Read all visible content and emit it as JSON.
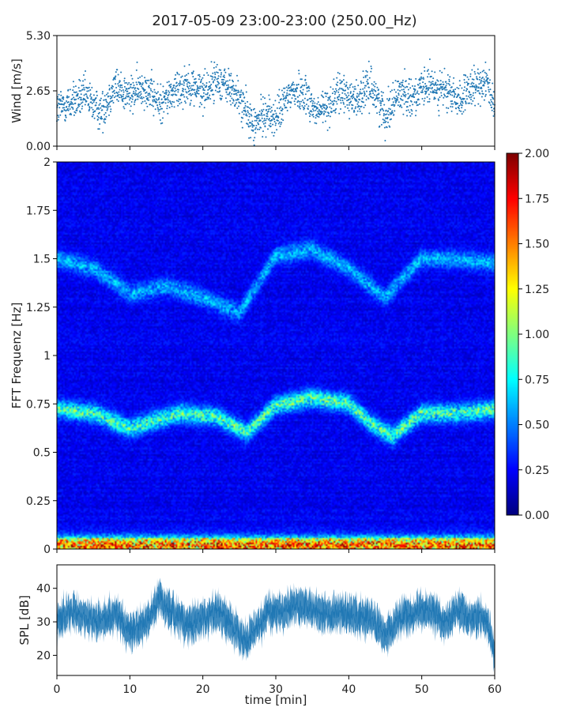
{
  "title": "2017-05-09 23:00-23:00 (250.00_Hz)",
  "chart_data": [
    {
      "type": "scatter",
      "ylabel": "Wind [m/s]",
      "xlim": [
        0,
        60
      ],
      "ylim": [
        0,
        5.3
      ],
      "yticks": [
        "0.00",
        "2.65",
        "5.30"
      ],
      "marker_color": "#1f77b4",
      "grid": false,
      "trend": {
        "x": [
          0,
          2,
          4,
          6,
          8,
          10,
          12,
          14,
          16,
          18,
          20,
          22,
          24,
          25.5,
          27,
          28.5,
          30,
          32,
          34,
          35.5,
          37,
          39,
          41,
          43,
          45,
          47,
          49,
          51,
          53,
          55,
          57,
          59,
          60
        ],
        "y": [
          1.8,
          2.1,
          2.4,
          1.6,
          2.9,
          2.4,
          2.9,
          2.0,
          2.6,
          3.0,
          2.6,
          3.2,
          2.7,
          2.0,
          0.9,
          1.6,
          1.3,
          2.6,
          2.6,
          1.6,
          1.9,
          2.6,
          2.2,
          2.9,
          1.5,
          2.6,
          2.4,
          2.9,
          2.7,
          2.2,
          2.7,
          3.3,
          1.5
        ]
      }
    },
    {
      "type": "heatmap",
      "ylabel": "FFT Frequenz [Hz]",
      "xlim": [
        0,
        60
      ],
      "ylim": [
        0,
        2
      ],
      "yticks": [
        "0",
        "0.25",
        "0.5",
        "0.75",
        "1",
        "1.25",
        "1.5",
        "1.75",
        "2"
      ],
      "colorscale": "jet",
      "colorbar": {
        "range": [
          0,
          2
        ],
        "ticks": [
          "0.00",
          "0.25",
          "0.50",
          "0.75",
          "1.00",
          "1.25",
          "1.50",
          "1.75",
          "2.00"
        ]
      },
      "ridges": [
        {
          "x": [
            0,
            5,
            10,
            13,
            17,
            22,
            26,
            30,
            35,
            40,
            43,
            46,
            50,
            55,
            60
          ],
          "y": [
            0.72,
            0.7,
            0.62,
            0.66,
            0.7,
            0.68,
            0.6,
            0.74,
            0.78,
            0.75,
            0.65,
            0.58,
            0.7,
            0.7,
            0.72
          ],
          "intensity": 0.95
        },
        {
          "x": [
            0,
            5,
            10,
            15,
            20,
            25,
            30,
            35,
            40,
            45,
            50,
            55,
            60
          ],
          "y": [
            1.5,
            1.45,
            1.32,
            1.36,
            1.3,
            1.22,
            1.52,
            1.55,
            1.45,
            1.3,
            1.5,
            1.5,
            1.48
          ],
          "intensity": 0.55
        },
        {
          "x": [
            0,
            60
          ],
          "y": [
            0.015,
            0.015
          ],
          "intensity": 1.6
        }
      ]
    },
    {
      "type": "area",
      "ylabel": "SPL [dB]",
      "xlabel": "time [min]",
      "xlim": [
        0,
        60
      ],
      "ylim": [
        14,
        47
      ],
      "yticks": [
        20,
        30,
        40
      ],
      "xticks": [
        0,
        10,
        20,
        30,
        40,
        50,
        60
      ],
      "series_color": "#1f77b4",
      "trend": {
        "x": [
          0,
          2,
          4,
          6,
          8,
          10,
          12,
          14,
          16,
          18,
          20,
          22,
          24,
          25.5,
          27,
          29,
          31,
          33,
          35,
          37,
          39,
          41,
          43,
          45,
          47,
          49,
          51,
          53,
          55,
          57,
          59,
          60
        ],
        "y": [
          30,
          33,
          31,
          30,
          32,
          27,
          29,
          37,
          32,
          29,
          31,
          33,
          29,
          24,
          27,
          33,
          33,
          35,
          34,
          32,
          33,
          32,
          31,
          26,
          31,
          33,
          34,
          29,
          34,
          31,
          31,
          20
        ]
      }
    }
  ]
}
